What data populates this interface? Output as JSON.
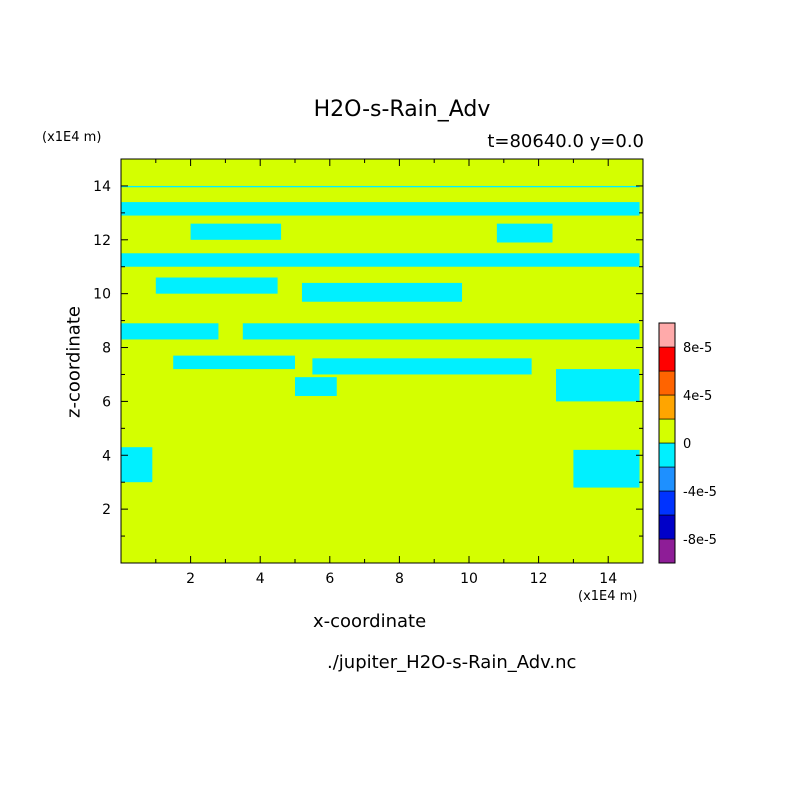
{
  "chart_data": {
    "type": "heatmap",
    "title": "H2O-s-Rain_Adv",
    "subtitle": "t=80640.0 y=0.0",
    "xlabel": "x-coordinate",
    "ylabel": "z-coordinate",
    "x_unit": "(x1E4 m)",
    "y_unit": "(x1E4 m)",
    "source_file": "./jupiter_H2O-s-Rain_Adv.nc",
    "xlim": [
      0,
      15
    ],
    "ylim": [
      0,
      15
    ],
    "x_ticks": [
      2,
      4,
      6,
      8,
      10,
      12,
      14
    ],
    "y_ticks": [
      2,
      4,
      6,
      8,
      10,
      12,
      14
    ],
    "background_level": "0",
    "regions_below_zero": [
      {
        "level": "-2e-5",
        "x": [
          0.0,
          14.9
        ],
        "z": [
          13.95,
          14.0
        ]
      },
      {
        "level": "-2e-5",
        "x": [
          0.0,
          14.9
        ],
        "z": [
          12.9,
          13.4
        ]
      },
      {
        "level": "-2e-5",
        "x": [
          0.0,
          14.9
        ],
        "z": [
          11.0,
          11.5
        ]
      },
      {
        "level": "-2e-5",
        "x": [
          1.0,
          4.5
        ],
        "z": [
          10.0,
          10.6
        ]
      },
      {
        "level": "-2e-5",
        "x": [
          5.2,
          9.8
        ],
        "z": [
          9.7,
          10.4
        ]
      },
      {
        "level": "-2e-5",
        "x": [
          0.0,
          2.8
        ],
        "z": [
          8.3,
          8.9
        ]
      },
      {
        "level": "-2e-5",
        "x": [
          3.5,
          14.9
        ],
        "z": [
          8.3,
          8.9
        ]
      },
      {
        "level": "-2e-5",
        "x": [
          1.5,
          5.0
        ],
        "z": [
          7.2,
          7.7
        ]
      },
      {
        "level": "-2e-5",
        "x": [
          5.5,
          11.8
        ],
        "z": [
          7.0,
          7.6
        ]
      },
      {
        "level": "-2e-5",
        "x": [
          5.0,
          6.2
        ],
        "z": [
          6.2,
          6.9
        ]
      },
      {
        "level": "-2e-5",
        "x": [
          12.5,
          14.9
        ],
        "z": [
          6.0,
          7.2
        ]
      },
      {
        "level": "-2e-5",
        "x": [
          0.0,
          0.9
        ],
        "z": [
          3.0,
          4.3
        ]
      },
      {
        "level": "-2e-5",
        "x": [
          13.0,
          14.9
        ],
        "z": [
          2.8,
          4.2
        ]
      },
      {
        "level": "-2e-5",
        "x": [
          10.8,
          12.4
        ],
        "z": [
          11.9,
          12.6
        ]
      },
      {
        "level": "-2e-5",
        "x": [
          2.0,
          4.6
        ],
        "z": [
          12.0,
          12.6
        ]
      }
    ],
    "colorbar": {
      "levels": [
        "-8e-5",
        "-4e-5",
        "0",
        "4e-5",
        "8e-5"
      ],
      "colors": [
        "#8e1d97",
        "#0000c8",
        "#0033ff",
        "#1e90ff",
        "#00f0ff",
        "#d4ff00",
        "#ffa500",
        "#ff6400",
        "#ff0000",
        "#ffaaaa"
      ]
    }
  }
}
